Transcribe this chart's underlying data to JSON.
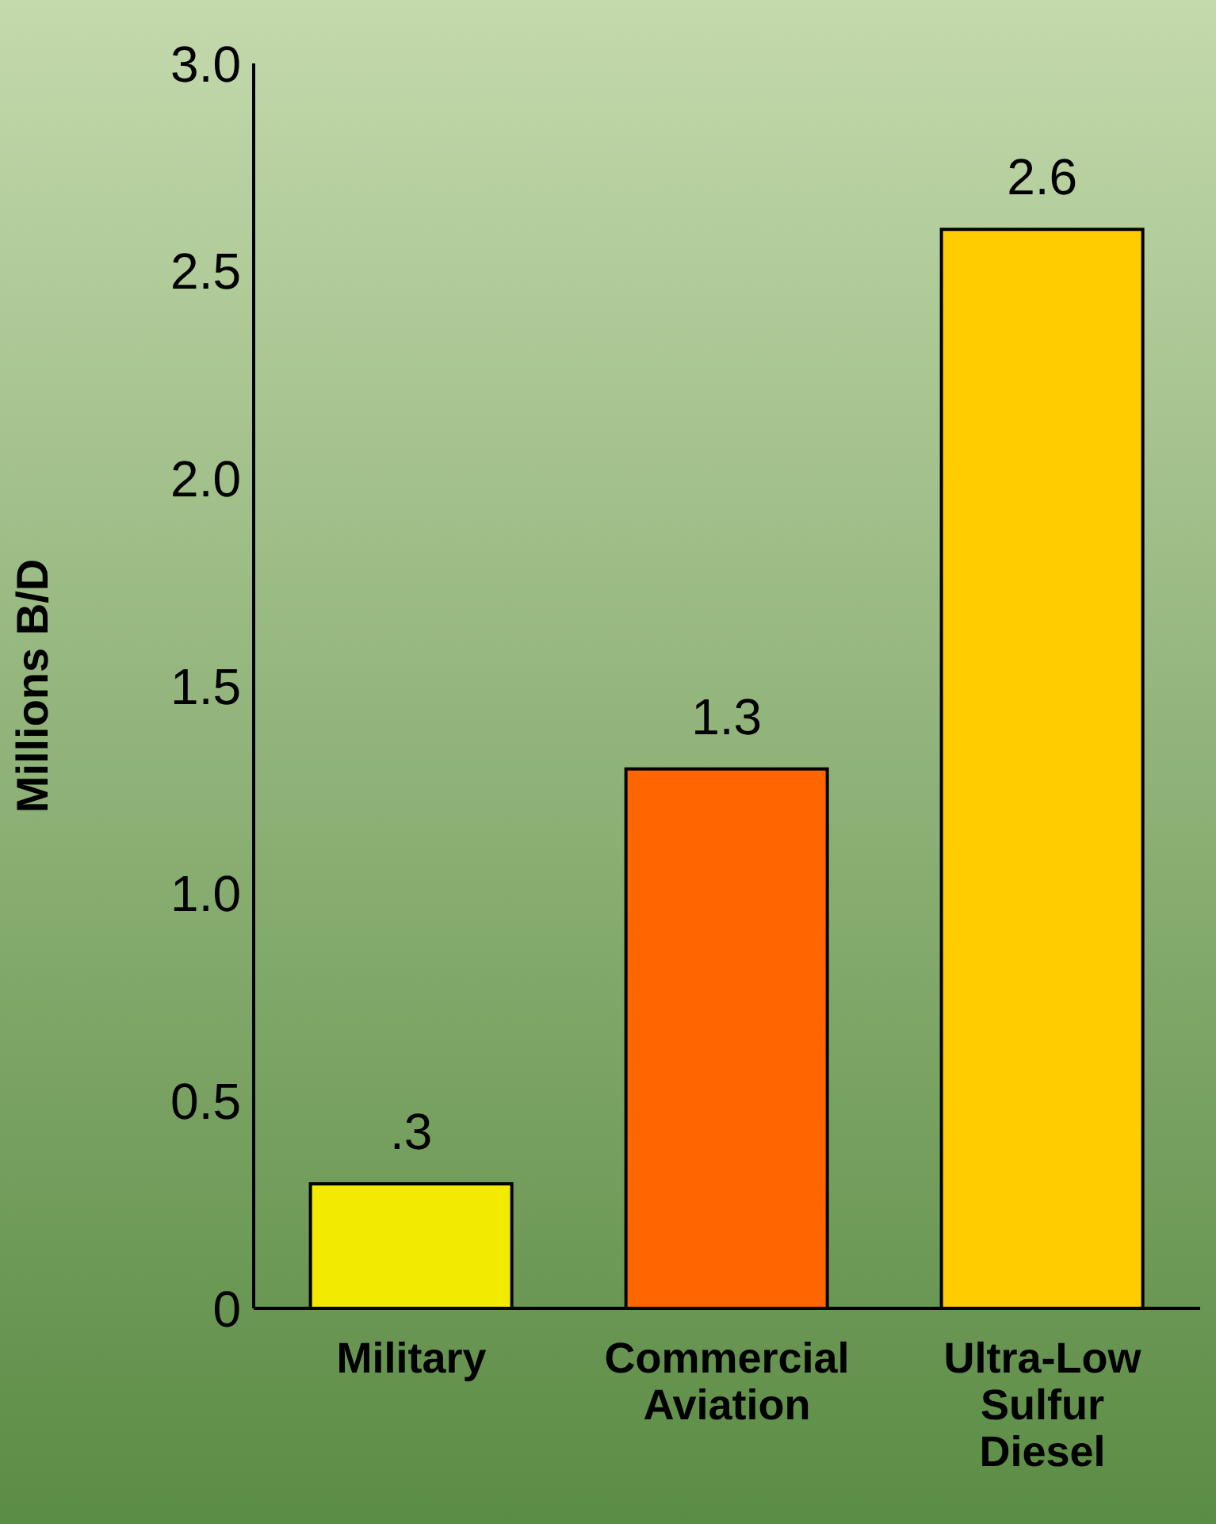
{
  "chart_data": {
    "type": "bar",
    "ylabel": "Millions B/D",
    "categories": [
      "Military",
      "Commercial Aviation",
      "Ultra-Low Sulfur Diesel"
    ],
    "values": [
      0.3,
      1.3,
      2.6
    ],
    "colors": [
      "#f2ea00",
      "#ff6600",
      "#ffcc00"
    ],
    "value_labels": [
      ".3",
      "1.3",
      "2.6"
    ],
    "ylim": [
      0,
      3
    ],
    "yticks": [
      0,
      {
        "value": 0.5,
        "label": "0.5"
      },
      {
        "value": 1,
        "label": "1.0"
      },
      {
        "value": 1.5,
        "label": "1.5"
      },
      {
        "value": 2,
        "label": "2.0"
      },
      {
        "value": 2.5,
        "label": "2.5"
      },
      {
        "value": 3,
        "label": "3.0"
      }
    ],
    "grid": false,
    "legend": false
  }
}
